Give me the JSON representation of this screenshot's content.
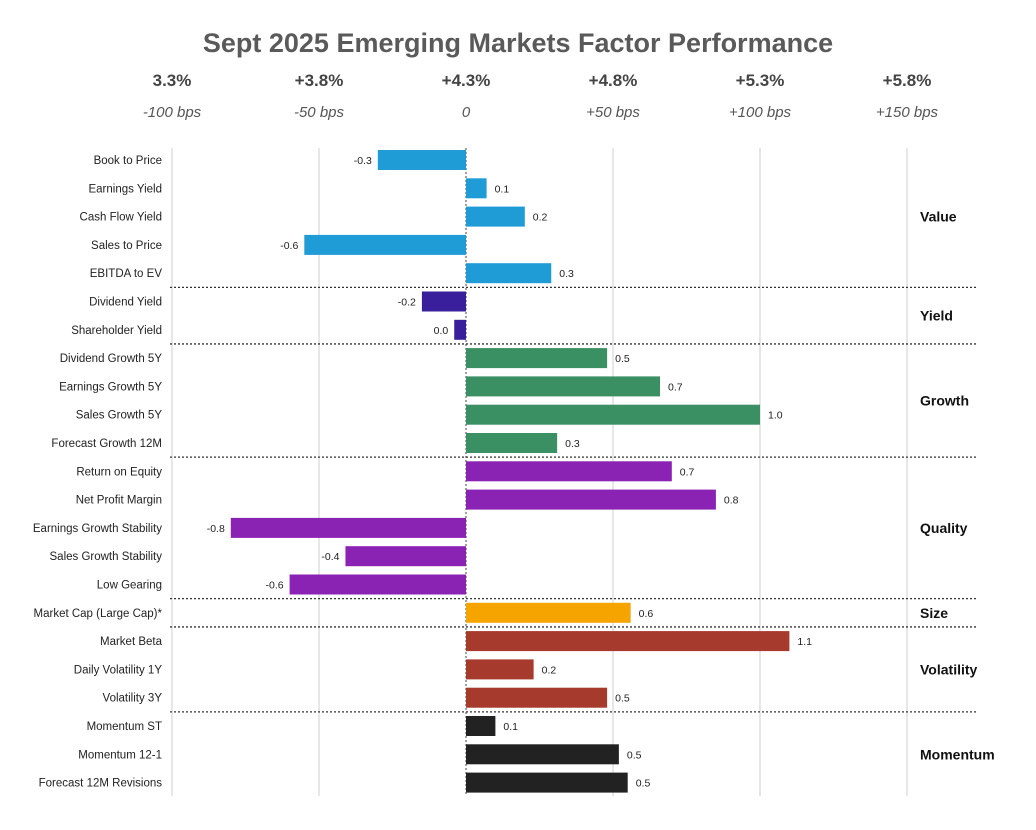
{
  "chart_data": {
    "type": "bar",
    "orientation": "horizontal",
    "title": "Sept 2025 Emerging Markets Factor Performance",
    "x_ticks": [
      {
        "top": "3.3%",
        "bps": "-100 bps",
        "value": -1.0
      },
      {
        "top": "+3.8%",
        "bps": "-50 bps",
        "value": -0.5
      },
      {
        "top": "+4.3%",
        "bps": "0",
        "value": 0.0
      },
      {
        "top": "+4.8%",
        "bps": "+50 bps",
        "value": 0.5
      },
      {
        "top": "+5.3%",
        "bps": "+100 bps",
        "value": 1.0
      },
      {
        "top": "+5.8%",
        "bps": "+150 bps",
        "value": 1.5
      }
    ],
    "xlim": [
      -1.0,
      1.5
    ],
    "groups": [
      {
        "name": "Value",
        "color": "#1f9bd6",
        "items": [
          {
            "label": "Book to Price",
            "value": -0.3,
            "text": "-0.3"
          },
          {
            "label": "Earnings Yield",
            "value": 0.07,
            "text": "0.1"
          },
          {
            "label": "Cash Flow Yield",
            "value": 0.2,
            "text": "0.2"
          },
          {
            "label": "Sales to Price",
            "value": -0.55,
            "text": "-0.6"
          },
          {
            "label": "EBITDA to EV",
            "value": 0.29,
            "text": "0.3"
          }
        ]
      },
      {
        "name": "Yield",
        "color": "#3a1f9c",
        "items": [
          {
            "label": "Dividend Yield",
            "value": -0.15,
            "text": "-0.2"
          },
          {
            "label": "Shareholder Yield",
            "value": -0.04,
            "text": "0.0"
          }
        ]
      },
      {
        "name": "Growth",
        "color": "#3a8f63",
        "items": [
          {
            "label": "Dividend Growth 5Y",
            "value": 0.48,
            "text": "0.5"
          },
          {
            "label": "Earnings Growth 5Y",
            "value": 0.66,
            "text": "0.7"
          },
          {
            "label": "Sales Growth 5Y",
            "value": 1.0,
            "text": "1.0"
          },
          {
            "label": "Forecast Growth 12M",
            "value": 0.31,
            "text": "0.3"
          }
        ]
      },
      {
        "name": "Quality",
        "color": "#8a22b4",
        "items": [
          {
            "label": "Return on Equity",
            "value": 0.7,
            "text": "0.7"
          },
          {
            "label": "Net Profit Margin",
            "value": 0.85,
            "text": "0.8"
          },
          {
            "label": "Earnings Growth Stability",
            "value": -0.8,
            "text": "-0.8"
          },
          {
            "label": "Sales Growth Stability",
            "value": -0.41,
            "text": "-0.4"
          },
          {
            "label": "Low Gearing",
            "value": -0.6,
            "text": "-0.6"
          }
        ]
      },
      {
        "name": "Size",
        "color": "#f6a400",
        "items": [
          {
            "label": "Market Cap (Large Cap)*",
            "value": 0.56,
            "text": "0.6"
          }
        ]
      },
      {
        "name": "Volatility",
        "color": "#a63a2c",
        "items": [
          {
            "label": "Market Beta",
            "value": 1.1,
            "text": "1.1"
          },
          {
            "label": "Daily Volatility 1Y",
            "value": 0.23,
            "text": "0.2"
          },
          {
            "label": "Volatility 3Y",
            "value": 0.48,
            "text": "0.5"
          }
        ]
      },
      {
        "name": "Momentum",
        "color": "#222222",
        "items": [
          {
            "label": "Momentum ST",
            "value": 0.1,
            "text": "0.1"
          },
          {
            "label": "Momentum 12-1",
            "value": 0.52,
            "text": "0.5"
          },
          {
            "label": "Forecast 12M Revisions",
            "value": 0.55,
            "text": "0.5"
          }
        ]
      }
    ]
  }
}
